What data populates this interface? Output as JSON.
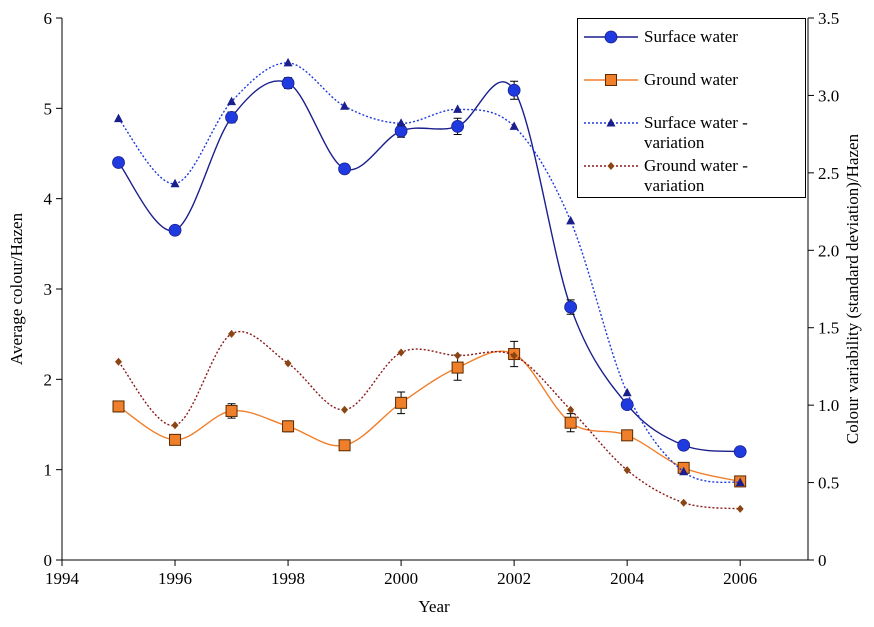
{
  "chart_data": {
    "type": "line",
    "x_label": "Year",
    "y_label": "Average colour/Hazen",
    "y2_label": "Colour variability (standard deviation)/Hazen",
    "x": [
      1995,
      1996,
      1997,
      1998,
      1999,
      2000,
      2001,
      2002,
      2003,
      2004,
      2005,
      2006
    ],
    "xlim": [
      1994,
      2007.2
    ],
    "xticks": [
      1994,
      1996,
      1998,
      2000,
      2002,
      2004,
      2006
    ],
    "ylim": [
      0,
      6
    ],
    "yticks": [
      0,
      1,
      2,
      3,
      4,
      5,
      6
    ],
    "y2lim": [
      0,
      3.5
    ],
    "y2ticks": [
      0,
      {
        "value": 0.5,
        "label": "0.5"
      },
      {
        "value": 1,
        "label": "1.0"
      },
      {
        "value": 1.5,
        "label": "1.5"
      },
      {
        "value": 2,
        "label": "2.0"
      },
      {
        "value": 2.5,
        "label": "2.5"
      },
      {
        "value": 3,
        "label": "3.0"
      },
      {
        "value": 3.5,
        "label": "3.5"
      }
    ],
    "legend": "top-right",
    "series": [
      {
        "name": "Surface water",
        "color": "#1a1f8c",
        "marker_color": "#1f3be0",
        "marker": "circle",
        "dash": "solid",
        "values": [
          4.4,
          3.65,
          4.9,
          5.28,
          4.33,
          4.75,
          4.8,
          5.2,
          2.8,
          1.72,
          1.27,
          1.2
        ],
        "errors": [
          0.05,
          0.04,
          0.06,
          0.06,
          0.05,
          0.07,
          0.09,
          0.1,
          0.08,
          0.03,
          0.03,
          0.03
        ]
      },
      {
        "name": "Ground water",
        "color": "#f07f2b",
        "marker_color": "#f07f2b",
        "marker": "square",
        "dash": "solid",
        "values": [
          1.7,
          1.33,
          1.65,
          1.48,
          1.27,
          1.74,
          2.13,
          2.28,
          1.52,
          1.38,
          1.02,
          0.87
        ],
        "errors": [
          0.06,
          0.04,
          0.08,
          0.06,
          0.04,
          0.12,
          0.14,
          0.14,
          0.1,
          0.04,
          0.04,
          0.04
        ]
      },
      {
        "name": "Surface water - variation",
        "color": "#1f3be0",
        "marker_color": "#1a1f8c",
        "marker": "triangle",
        "dash": "dotted",
        "axis": "y2",
        "values": [
          2.85,
          2.43,
          2.96,
          3.21,
          2.93,
          2.82,
          2.91,
          2.8,
          2.19,
          1.08,
          0.57,
          0.5
        ]
      },
      {
        "name": "Ground water - variation",
        "color": "#8b1a1a",
        "marker_color": "#8b4513",
        "marker": "diamond",
        "dash": "dotted",
        "axis": "y2",
        "values": [
          1.28,
          0.87,
          1.46,
          1.27,
          0.97,
          1.34,
          1.32,
          1.32,
          0.97,
          0.58,
          0.37,
          0.33
        ]
      }
    ]
  }
}
